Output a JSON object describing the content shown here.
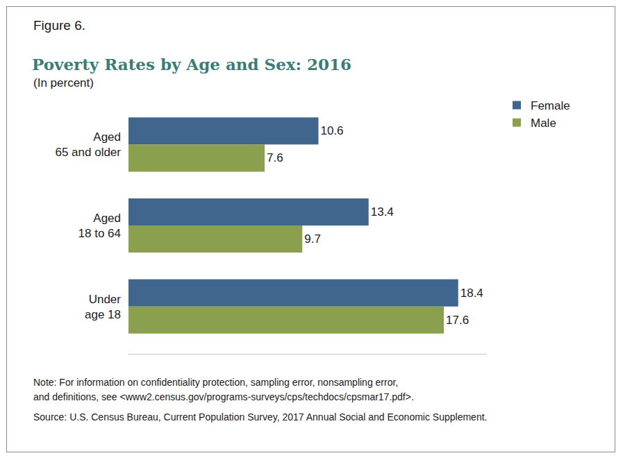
{
  "chart_data": {
    "type": "bar",
    "orientation": "horizontal",
    "title": "Poverty Rates by Age and Sex: 2016",
    "subtitle": "(In percent)",
    "annotations": [
      "Figure 6.",
      "Note: For information on confidentiality protection, sampling error, nonsampling error,",
      "and definitions, see <www2.census.gov/programs-surveys/cps/techdocs/cpsmar17.pdf>.",
      "Source: U.S. Census Bureau, Current Population Survey, 2017 Annual Social and Economic Supplement."
    ],
    "categories": [
      "Aged\n65 and older",
      "Aged\n18 to 64",
      "Under\nage 18"
    ],
    "series": [
      {
        "name": "Female",
        "color": "#41668e",
        "values": [
          10.6,
          13.4,
          18.4
        ]
      },
      {
        "name": "Male",
        "color": "#8ba04e",
        "values": [
          7.6,
          9.7,
          17.6
        ]
      }
    ],
    "xlim": [
      0,
      20
    ],
    "tick_labels": false,
    "grid": false,
    "legend": "top right",
    "data_labels": true
  }
}
